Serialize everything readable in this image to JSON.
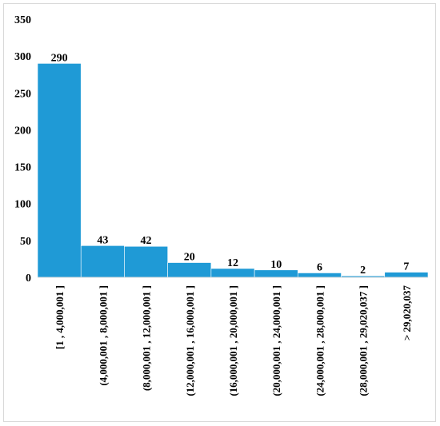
{
  "chart_data": {
    "type": "bar",
    "title": "",
    "xlabel": "",
    "ylabel": "",
    "ylim": [
      0,
      350
    ],
    "yticks": [
      0,
      50,
      100,
      150,
      200,
      250,
      300,
      350
    ],
    "grid": false,
    "legend": "none",
    "bar_color": "#1f9ad6",
    "categories": [
      "[1 , 4,000,001 ]",
      "(4,000,001 , 8,000,001 ]",
      "(8,000,001 , 12,000,001 ]",
      "(12,000,001 , 16,000,001 ]",
      "(16,000,001 , 20,000,001 ]",
      "(20,000,001 , 24,000,001 ]",
      "(24,000,001 , 28,000,001 ]",
      "(28,000,001 , 29,020,037 ]",
      "> 29,020,037"
    ],
    "values": [
      290,
      43,
      42,
      20,
      12,
      10,
      6,
      2,
      7
    ]
  }
}
